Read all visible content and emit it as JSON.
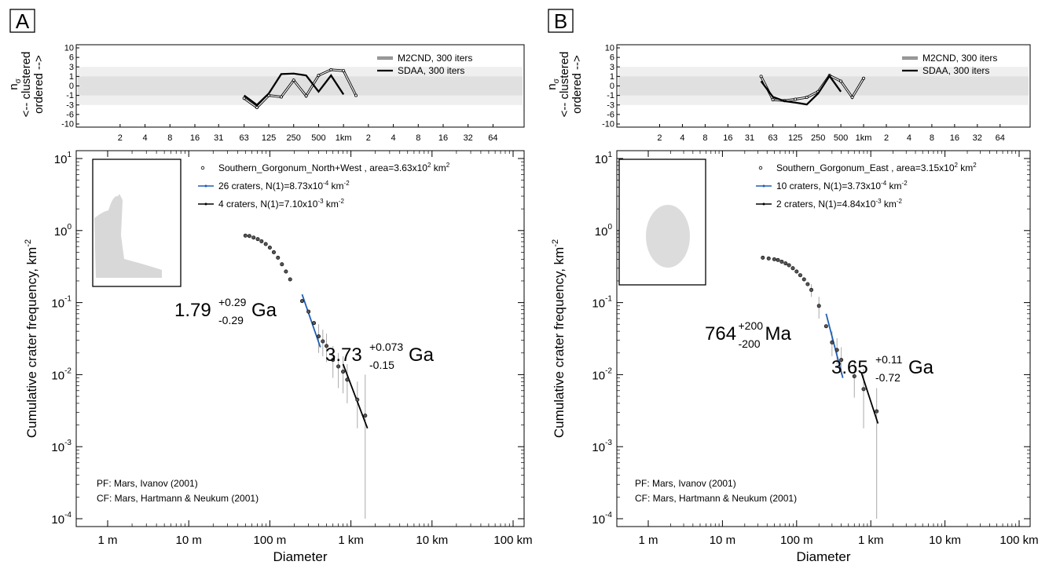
{
  "colors": {
    "blue": "#1f5fb5",
    "black": "#000000",
    "band_outer": "#efefef",
    "band_inner": "#e0e0e0",
    "errorbar": "#aaaaaa"
  },
  "chart_data": [
    {
      "type": "scatter",
      "panel_label": "A",
      "xlabel": "Diameter",
      "ylabel": "Cumulative crater frequency, km",
      "ylabel_sup": "-2",
      "log_x": true,
      "log_y": true,
      "xlim_km": [
        0.001,
        100
      ],
      "ylim": [
        0.0001,
        10
      ],
      "x_ticks": [
        "1 m",
        "10 m",
        "100 m",
        "1 km",
        "10 km",
        "100 km"
      ],
      "y_ticks": [
        {
          "base": "10",
          "exp": "1"
        },
        {
          "base": "10",
          "exp": "0"
        },
        {
          "base": "10",
          "exp": "-1"
        },
        {
          "base": "10",
          "exp": "-2"
        },
        {
          "base": "10",
          "exp": "-3"
        },
        {
          "base": "10",
          "exp": "-4"
        }
      ],
      "legend": [
        {
          "text": "Southern_Gorgonum_North+West , area=3.63x10",
          "sup": "2",
          "tail": " km",
          "sup2": "2"
        },
        {
          "text": "26 craters, N(1)=8.73x10",
          "sup": "-4",
          "tail": " km",
          "sup2": "-2"
        },
        {
          "text": "4 craters, N(1)=7.10x10",
          "sup": "-3",
          "tail": " km",
          "sup2": "-2"
        }
      ],
      "footer": [
        "PF: Mars, Ivanov (2001)",
        "CF: Mars, Hartmann & Neukum (2001)"
      ],
      "age_fits": [
        {
          "value": "1.79",
          "plus": "+0.29",
          "minus": "-0.29",
          "unit": "Ga",
          "color": "blue",
          "d_range_km": [
            0.25,
            0.42
          ],
          "n_range": [
            0.13,
            0.024
          ]
        },
        {
          "value": "3.73",
          "plus": "+0.073",
          "minus": "-0.15",
          "unit": "Ga",
          "color": "black",
          "d_range_km": [
            0.8,
            1.6
          ],
          "n_range": [
            0.014,
            0.0018
          ]
        }
      ],
      "points": [
        {
          "d": 0.05,
          "n": 0.85
        },
        {
          "d": 0.056,
          "n": 0.84
        },
        {
          "d": 0.063,
          "n": 0.8
        },
        {
          "d": 0.071,
          "n": 0.76
        },
        {
          "d": 0.079,
          "n": 0.71
        },
        {
          "d": 0.089,
          "n": 0.65
        },
        {
          "d": 0.1,
          "n": 0.58
        },
        {
          "d": 0.112,
          "n": 0.5
        },
        {
          "d": 0.126,
          "n": 0.42
        },
        {
          "d": 0.141,
          "n": 0.34
        },
        {
          "d": 0.158,
          "n": 0.27
        },
        {
          "d": 0.178,
          "n": 0.21
        },
        {
          "d": 0.25,
          "n": 0.105
        },
        {
          "d": 0.3,
          "n": 0.075
        },
        {
          "d": 0.35,
          "n": 0.052
        },
        {
          "d": 0.4,
          "n": 0.034
        },
        {
          "d": 0.45,
          "n": 0.029
        },
        {
          "d": 0.5,
          "n": 0.025
        },
        {
          "d": 0.6,
          "n": 0.016
        },
        {
          "d": 0.7,
          "n": 0.013
        },
        {
          "d": 0.8,
          "n": 0.011
        },
        {
          "d": 0.9,
          "n": 0.0085
        },
        {
          "d": 1.2,
          "n": 0.0045
        },
        {
          "d": 1.5,
          "n": 0.0027
        }
      ],
      "errorbars": [
        {
          "d": 0.4,
          "lo": 0.02,
          "hi": 0.05
        },
        {
          "d": 0.45,
          "lo": 0.018,
          "hi": 0.042
        },
        {
          "d": 0.5,
          "lo": 0.015,
          "hi": 0.037
        },
        {
          "d": 0.6,
          "lo": 0.009,
          "hi": 0.025
        },
        {
          "d": 0.7,
          "lo": 0.0065,
          "hi": 0.02
        },
        {
          "d": 0.8,
          "lo": 0.0055,
          "hi": 0.018
        },
        {
          "d": 0.9,
          "lo": 0.004,
          "hi": 0.014
        },
        {
          "d": 1.2,
          "lo": 0.0018,
          "hi": 0.008
        },
        {
          "d": 1.5,
          "lo": 0.0001,
          "hi": 0.01
        }
      ],
      "randomness": {
        "ylabel_main": "n",
        "ylabel_sub": "σ",
        "ylabel_line2": "<-- clustered",
        "ylabel_line3": "ordered -->",
        "y_ticks": [
          "10",
          "6",
          "3",
          "1",
          "0",
          "-1",
          "-3",
          "-6",
          "-10"
        ],
        "x_ticks": [
          "2",
          "4",
          "8",
          "16",
          "31",
          "63",
          "125",
          "250",
          "500",
          "1km",
          "2",
          "4",
          "8",
          "16",
          "32",
          "64"
        ],
        "legend": [
          "M2CND, 300 iters",
          "SDAA, 300 iters"
        ],
        "series": [
          {
            "name": "M2CND, 300 iters",
            "points": [
              [
                63,
                -1.6
              ],
              [
                90,
                -3.8
              ],
              [
                125,
                -1.0
              ],
              [
                177,
                -1.3
              ],
              [
                250,
                0.6
              ],
              [
                354,
                -1.1
              ],
              [
                500,
                1.2
              ],
              [
                707,
                2.4
              ],
              [
                1000,
                2.2
              ],
              [
                1414,
                -1.0
              ]
            ]
          },
          {
            "name": "SDAA, 300 iters",
            "points": [
              [
                63,
                -1.0
              ],
              [
                90,
                -3.0
              ],
              [
                125,
                -0.8
              ],
              [
                177,
                1.5
              ],
              [
                250,
                1.6
              ],
              [
                354,
                1.2
              ],
              [
                500,
                -0.6
              ],
              [
                707,
                1.2
              ],
              [
                1000,
                -0.9
              ]
            ]
          }
        ]
      }
    },
    {
      "type": "scatter",
      "panel_label": "B",
      "xlabel": "Diameter",
      "ylabel": "Cumulative crater frequency, km",
      "ylabel_sup": "-2",
      "log_x": true,
      "log_y": true,
      "xlim_km": [
        0.001,
        100
      ],
      "ylim": [
        0.0001,
        10
      ],
      "x_ticks": [
        "1 m",
        "10 m",
        "100 m",
        "1 km",
        "10 km",
        "100 km"
      ],
      "y_ticks": [
        {
          "base": "10",
          "exp": "1"
        },
        {
          "base": "10",
          "exp": "0"
        },
        {
          "base": "10",
          "exp": "-1"
        },
        {
          "base": "10",
          "exp": "-2"
        },
        {
          "base": "10",
          "exp": "-3"
        },
        {
          "base": "10",
          "exp": "-4"
        }
      ],
      "legend": [
        {
          "text": "Southern_Gorgonum_East , area=3.15x10",
          "sup": "2",
          "tail": " km",
          "sup2": "2"
        },
        {
          "text": "10 craters, N(1)=3.73x10",
          "sup": "-4",
          "tail": " km",
          "sup2": "-2"
        },
        {
          "text": "2 craters, N(1)=4.84x10",
          "sup": "-3",
          "tail": " km",
          "sup2": "-2"
        }
      ],
      "footer": [
        "PF: Mars, Ivanov (2001)",
        "CF: Mars, Hartmann & Neukum (2001)"
      ],
      "age_fits": [
        {
          "value": "764",
          "plus": "+200",
          "minus": "-200",
          "unit": "Ma",
          "color": "blue",
          "d_range_km": [
            0.25,
            0.42
          ],
          "n_range": [
            0.07,
            0.009
          ]
        },
        {
          "value": "3.65",
          "plus": "+0.11",
          "minus": "-0.72",
          "unit": "Ga",
          "color": "black",
          "d_range_km": [
            0.75,
            1.25
          ],
          "n_range": [
            0.0105,
            0.0021
          ]
        }
      ],
      "points": [
        {
          "d": 0.035,
          "n": 0.42
        },
        {
          "d": 0.042,
          "n": 0.41
        },
        {
          "d": 0.05,
          "n": 0.4
        },
        {
          "d": 0.056,
          "n": 0.39
        },
        {
          "d": 0.063,
          "n": 0.37
        },
        {
          "d": 0.071,
          "n": 0.35
        },
        {
          "d": 0.079,
          "n": 0.33
        },
        {
          "d": 0.089,
          "n": 0.3
        },
        {
          "d": 0.1,
          "n": 0.27
        },
        {
          "d": 0.112,
          "n": 0.24
        },
        {
          "d": 0.126,
          "n": 0.21
        },
        {
          "d": 0.141,
          "n": 0.18
        },
        {
          "d": 0.158,
          "n": 0.15
        },
        {
          "d": 0.2,
          "n": 0.09
        },
        {
          "d": 0.25,
          "n": 0.047
        },
        {
          "d": 0.3,
          "n": 0.028
        },
        {
          "d": 0.35,
          "n": 0.022
        },
        {
          "d": 0.4,
          "n": 0.016
        },
        {
          "d": 0.6,
          "n": 0.0095
        },
        {
          "d": 0.8,
          "n": 0.0063
        },
        {
          "d": 1.2,
          "n": 0.0031
        }
      ],
      "errorbars": [
        {
          "d": 0.158,
          "lo": 0.12,
          "hi": 0.18
        },
        {
          "d": 0.2,
          "lo": 0.06,
          "hi": 0.12
        },
        {
          "d": 0.3,
          "lo": 0.018,
          "hi": 0.04
        },
        {
          "d": 0.35,
          "lo": 0.014,
          "hi": 0.032
        },
        {
          "d": 0.4,
          "lo": 0.01,
          "hi": 0.024
        },
        {
          "d": 0.6,
          "lo": 0.0048,
          "hi": 0.016
        },
        {
          "d": 0.8,
          "lo": 0.0018,
          "hi": 0.012
        },
        {
          "d": 1.2,
          "lo": 0.0001,
          "hi": 0.0065
        }
      ],
      "randomness": {
        "ylabel_main": "n",
        "ylabel_sub": "σ",
        "ylabel_line2": "<-- clustered",
        "ylabel_line3": "ordered -->",
        "y_ticks": [
          "10",
          "6",
          "3",
          "1",
          "0",
          "-1",
          "-3",
          "-6",
          "-10"
        ],
        "x_ticks": [
          "2",
          "4",
          "8",
          "16",
          "31",
          "63",
          "125",
          "250",
          "500",
          "1km",
          "2",
          "4",
          "8",
          "16",
          "32",
          "64"
        ],
        "legend": [
          "M2CND, 300 iters",
          "SDAA, 300 iters"
        ],
        "series": [
          {
            "name": "M2CND, 300 iters",
            "points": [
              [
                44,
                1.0
              ],
              [
                63,
                -1.9
              ],
              [
                90,
                -2.1
              ],
              [
                125,
                -1.8
              ],
              [
                177,
                -1.4
              ],
              [
                250,
                -0.6
              ],
              [
                354,
                1.2
              ],
              [
                500,
                0.5
              ],
              [
                707,
                -1.4
              ],
              [
                1000,
                0.8
              ]
            ]
          },
          {
            "name": "SDAA, 300 iters",
            "points": [
              [
                44,
                0.5
              ],
              [
                63,
                -1.3
              ],
              [
                90,
                -2.2
              ],
              [
                125,
                -2.5
              ],
              [
                177,
                -2.9
              ],
              [
                250,
                -0.8
              ],
              [
                354,
                1.1
              ],
              [
                500,
                -0.6
              ]
            ]
          }
        ]
      }
    }
  ]
}
